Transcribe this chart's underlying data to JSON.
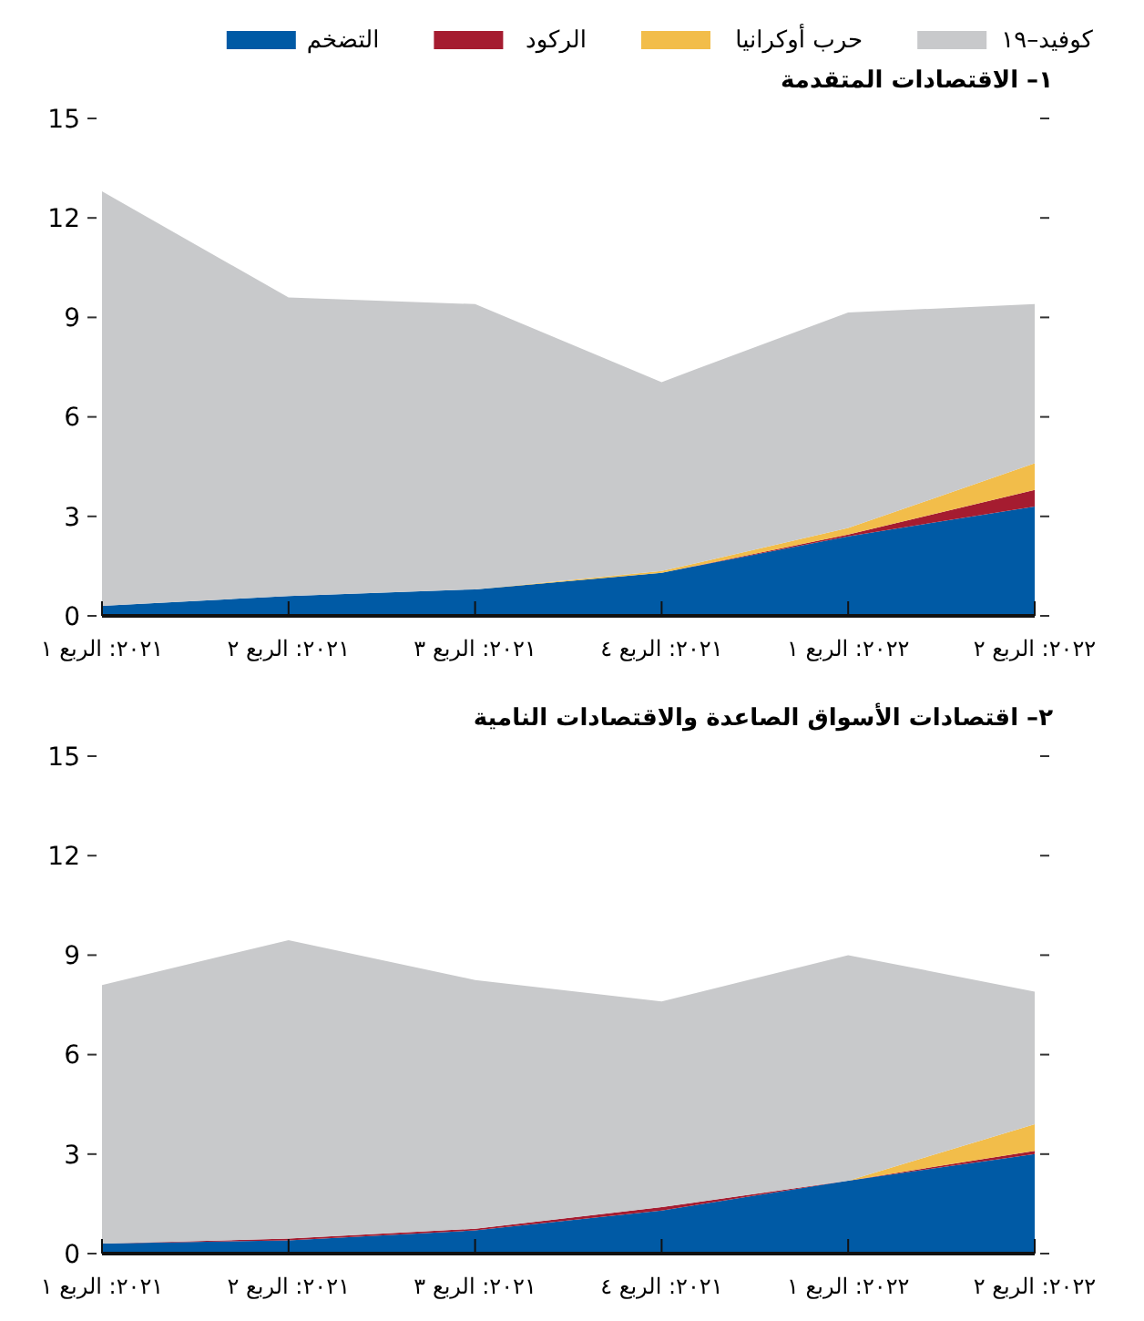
{
  "chart_data": [
    {
      "type": "area",
      "stacked": true,
      "legend": "top",
      "title": "١– الاقتصادات المتقدمة",
      "categories": [
        "٢٠٢١: الربع ١",
        "٢٠٢١: الربع ٢",
        "٢٠٢١: الربع ٣",
        "٢٠٢١: الربع ٤",
        "٢٠٢٢: الربع ١",
        "٢٠٢٢: الربع ٢"
      ],
      "ylim": [
        0,
        15
      ],
      "yticks": [
        0,
        3,
        6,
        9,
        12,
        15
      ],
      "series": [
        {
          "name": "التضخم",
          "color": "#005aa5",
          "values": [
            0.3,
            0.6,
            0.8,
            1.3,
            2.4,
            3.3
          ]
        },
        {
          "name": "الركود",
          "color": "#a51c30",
          "values": [
            0,
            0,
            0,
            0,
            0.05,
            0.5
          ]
        },
        {
          "name": "حرب أوكرانيا",
          "color": "#f2bd4a",
          "values": [
            0,
            0,
            0,
            0.05,
            0.2,
            0.8
          ]
        },
        {
          "name": "كوفيد–١٩",
          "color": "#c8c9cb",
          "values": [
            12.5,
            9.0,
            8.6,
            5.7,
            6.5,
            4.8
          ]
        }
      ]
    },
    {
      "type": "area",
      "stacked": true,
      "title": "٢– اقتصادات الأسواق الصاعدة والاقتصادات النامية",
      "categories": [
        "٢٠٢١: الربع ١",
        "٢٠٢١: الربع ٢",
        "٢٠٢١: الربع ٣",
        "٢٠٢١: الربع ٤",
        "٢٠٢٢: الربع ١",
        "٢٠٢٢: الربع ٢"
      ],
      "ylim": [
        0,
        15
      ],
      "yticks": [
        0,
        3,
        6,
        9,
        12,
        15
      ],
      "series": [
        {
          "color": "#005aa5",
          "values": [
            0.3,
            0.4,
            0.7,
            1.3,
            2.2,
            3.0
          ]
        },
        {
          "color": "#a51c30",
          "values": [
            0,
            0.05,
            0.05,
            0.1,
            0,
            0.1
          ]
        },
        {
          "color": "#f2bd4a",
          "values": [
            0,
            0,
            0,
            0,
            0,
            0.8
          ]
        },
        {
          "color": "#c8c9cb",
          "values": [
            7.8,
            9.0,
            7.5,
            6.2,
            6.8,
            4.0
          ]
        }
      ]
    }
  ]
}
